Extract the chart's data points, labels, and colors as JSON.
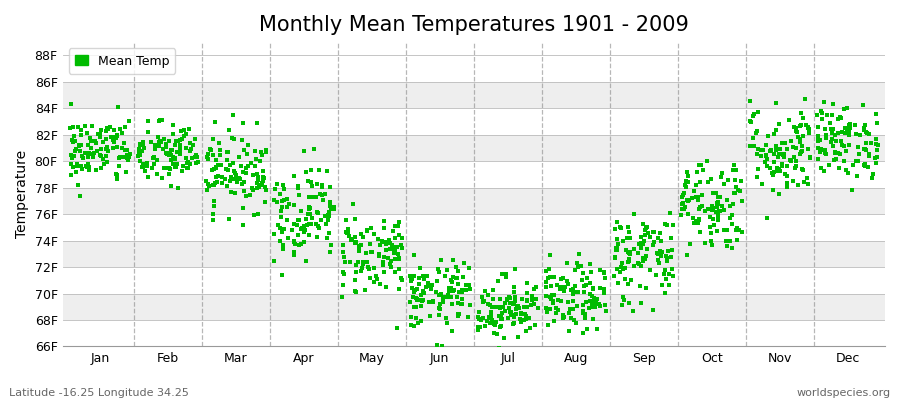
{
  "title": "Monthly Mean Temperatures 1901 - 2009",
  "ylabel": "Temperature",
  "subtitle_left": "Latitude -16.25 Longitude 34.25",
  "subtitle_right": "worldspecies.org",
  "legend_label": "Mean Temp",
  "months": [
    "Jan",
    "Feb",
    "Mar",
    "Apr",
    "May",
    "Jun",
    "Jul",
    "Aug",
    "Sep",
    "Oct",
    "Nov",
    "Dec"
  ],
  "ylim": [
    66,
    89
  ],
  "yticks": [
    66,
    68,
    70,
    72,
    74,
    76,
    78,
    80,
    82,
    84,
    86,
    88
  ],
  "ytick_labels": [
    "66F",
    "68F",
    "70F",
    "72F",
    "74F",
    "76F",
    "78F",
    "80F",
    "82F",
    "84F",
    "86F",
    "88F"
  ],
  "dot_color": "#00BB00",
  "background_color": "#ffffff",
  "band_color_light": "#eeeeee",
  "band_color_dark": "#e0e0e0",
  "title_fontsize": 15,
  "axis_label_fontsize": 10,
  "tick_fontsize": 9,
  "n_years": 109,
  "mean_temps_f": [
    80.8,
    80.5,
    79.3,
    76.2,
    73.0,
    69.8,
    68.9,
    69.6,
    72.8,
    76.8,
    80.8,
    81.5
  ],
  "std_temps_f": [
    1.3,
    1.2,
    1.5,
    1.8,
    1.6,
    1.3,
    1.2,
    1.3,
    1.8,
    1.8,
    1.8,
    1.4
  ],
  "dashed_line_color": "#888888",
  "dashed_line_alpha": 0.6
}
